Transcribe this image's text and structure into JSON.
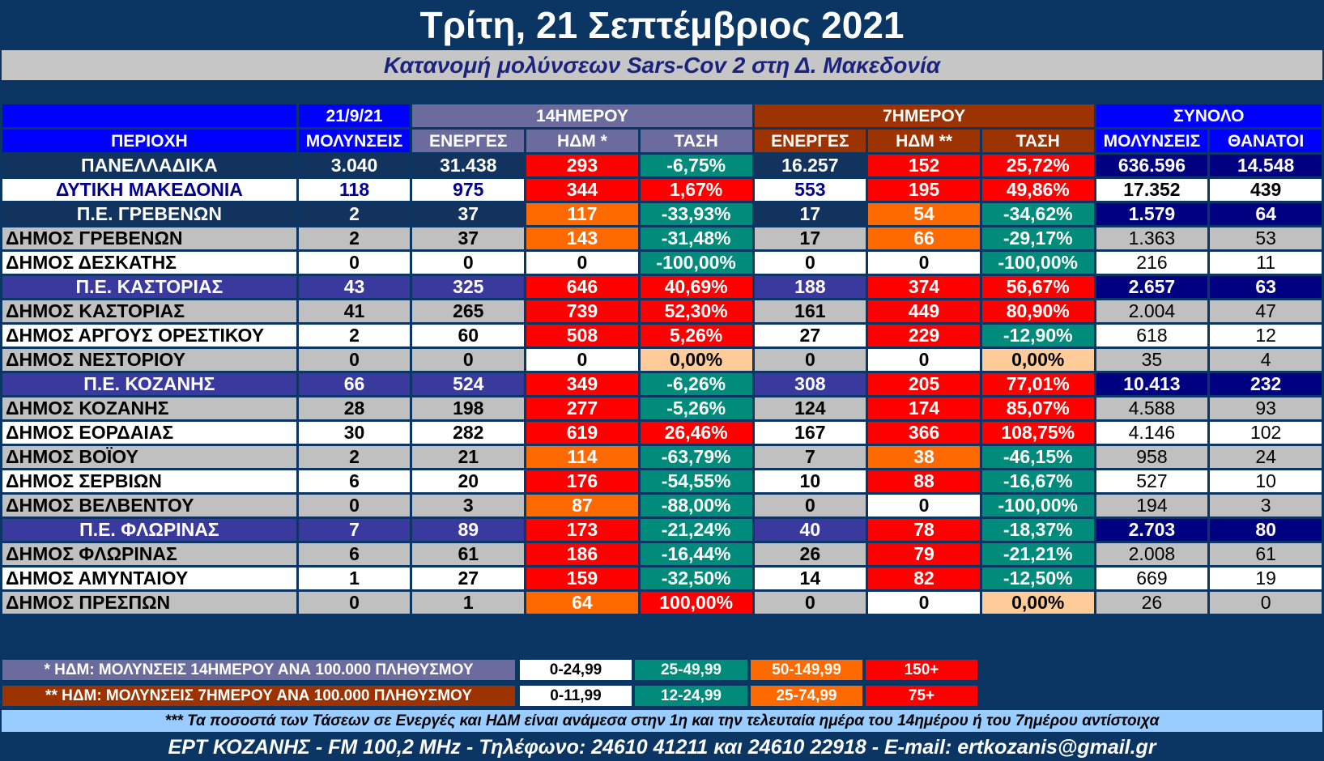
{
  "title": "Τρίτη, 21 Σεπτέμβριος 2021",
  "subtitle": "Κατανομή μολύνσεων Sars-Cov 2 στη Δ. Μακεδονία",
  "header": {
    "date": "21/9/21",
    "group_14": "14ΗΜΕΡΟΥ",
    "group_7": "7ΗΜΕΡΟΥ",
    "group_total": "ΣΥΝΟΛΟ",
    "area": "ΠΕΡΙΟΧΗ",
    "infections": "ΜΟΛΥΝΣΕΙΣ",
    "active14": "ΕΝΕΡΓΕΣ",
    "hdm14": "ΗΔΜ *",
    "trend14": "ΤΑΣΗ",
    "active7": "ΕΝΕΡΓΕΣ",
    "hdm7": "ΗΔΜ **",
    "trend7": "ΤΑΣΗ",
    "total_infections": "ΜΟΛΥΝΣΕΙΣ",
    "deaths": "ΘΑΝΑΤΟΙ"
  },
  "rows": [
    {
      "kind": "national",
      "name": "ΠΑΝΕΛΛΑΔΙΚΑ",
      "inf": "3.040",
      "act14": "31.438",
      "hdm14": "293",
      "hdm14_c": "red",
      "tr14": "-6,75%",
      "tr14_c": "teal",
      "act7": "16.257",
      "hdm7": "152",
      "hdm7_c": "red",
      "tr7": "25,72%",
      "tr7_c": "red",
      "tot": "636.596",
      "deaths": "14.548"
    },
    {
      "kind": "region",
      "name": "ΔΥΤΙΚΗ ΜΑΚΕΔΟΝΙΑ",
      "inf": "118",
      "act14": "975",
      "hdm14": "344",
      "hdm14_c": "red",
      "tr14": "1,67%",
      "tr14_c": "red",
      "act7": "553",
      "hdm7": "195",
      "hdm7_c": "red",
      "tr7": "49,86%",
      "tr7_c": "red",
      "tot": "17.352",
      "deaths": "439"
    },
    {
      "kind": "pe",
      "name": "Π.Ε. ΓΡΕΒΕΝΩΝ",
      "inf": "2",
      "act14": "37",
      "hdm14": "117",
      "hdm14_c": "orange",
      "tr14": "-33,93%",
      "tr14_c": "teal",
      "act7": "17",
      "hdm7": "54",
      "hdm7_c": "orange",
      "tr7": "-34,62%",
      "tr7_c": "teal",
      "tot": "1.579",
      "deaths": "64"
    },
    {
      "kind": "grey",
      "name": "ΔΗΜΟΣ ΓΡΕΒΕΝΩΝ",
      "inf": "2",
      "act14": "37",
      "hdm14": "143",
      "hdm14_c": "orange",
      "tr14": "-31,48%",
      "tr14_c": "teal",
      "act7": "17",
      "hdm7": "66",
      "hdm7_c": "orange",
      "tr7": "-29,17%",
      "tr7_c": "teal",
      "tot": "1.363",
      "deaths": "53"
    },
    {
      "kind": "white",
      "name": "ΔΗΜΟΣ ΔΕΣΚΑΤΗΣ",
      "inf": "0",
      "act14": "0",
      "hdm14": "0",
      "hdm14_c": "white",
      "tr14": "-100,00%",
      "tr14_c": "teal",
      "act7": "0",
      "hdm7": "0",
      "hdm7_c": "white",
      "tr7": "-100,00%",
      "tr7_c": "teal",
      "tot": "216",
      "deaths": "11"
    },
    {
      "kind": "pe",
      "name": "Π.Ε. ΚΑΣΤΟΡΙΑΣ",
      "inf": "43",
      "act14": "325",
      "hdm14": "646",
      "hdm14_c": "red",
      "tr14": "40,69%",
      "tr14_c": "red",
      "act7": "188",
      "hdm7": "374",
      "hdm7_c": "red",
      "tr7": "56,67%",
      "tr7_c": "red",
      "tot": "2.657",
      "deaths": "63"
    },
    {
      "kind": "grey",
      "name": "ΔΗΜΟΣ ΚΑΣΤΟΡΙΑΣ",
      "inf": "41",
      "act14": "265",
      "hdm14": "739",
      "hdm14_c": "red",
      "tr14": "52,30%",
      "tr14_c": "red",
      "act7": "161",
      "hdm7": "449",
      "hdm7_c": "red",
      "tr7": "80,90%",
      "tr7_c": "red",
      "tot": "2.004",
      "deaths": "47"
    },
    {
      "kind": "white",
      "name": "ΔΗΜΟΣ ΑΡΓΟΥΣ ΟΡΕΣΤΙΚΟΥ",
      "inf": "2",
      "act14": "60",
      "hdm14": "508",
      "hdm14_c": "red",
      "tr14": "5,26%",
      "tr14_c": "red",
      "act7": "27",
      "hdm7": "229",
      "hdm7_c": "red",
      "tr7": "-12,90%",
      "tr7_c": "teal",
      "tot": "618",
      "deaths": "12"
    },
    {
      "kind": "grey",
      "name": "ΔΗΜΟΣ ΝΕΣΤΟΡΙΟΥ",
      "inf": "0",
      "act14": "0",
      "hdm14": "0",
      "hdm14_c": "white",
      "tr14": "0,00%",
      "tr14_c": "peach",
      "act7": "0",
      "hdm7": "0",
      "hdm7_c": "white",
      "tr7": "0,00%",
      "tr7_c": "peach",
      "tot": "35",
      "deaths": "4"
    },
    {
      "kind": "pe",
      "name": "Π.Ε. ΚΟΖΑΝΗΣ",
      "inf": "66",
      "act14": "524",
      "hdm14": "349",
      "hdm14_c": "red",
      "tr14": "-6,26%",
      "tr14_c": "teal",
      "act7": "308",
      "hdm7": "205",
      "hdm7_c": "red",
      "tr7": "77,01%",
      "tr7_c": "red",
      "tot": "10.413",
      "deaths": "232"
    },
    {
      "kind": "grey",
      "name": "ΔΗΜΟΣ ΚΟΖΑΝΗΣ",
      "inf": "28",
      "act14": "198",
      "hdm14": "277",
      "hdm14_c": "red",
      "tr14": "-5,26%",
      "tr14_c": "teal",
      "act7": "124",
      "hdm7": "174",
      "hdm7_c": "red",
      "tr7": "85,07%",
      "tr7_c": "red",
      "tot": "4.588",
      "deaths": "93"
    },
    {
      "kind": "white",
      "name": "ΔΗΜΟΣ ΕΟΡΔΑΙΑΣ",
      "inf": "30",
      "act14": "282",
      "hdm14": "619",
      "hdm14_c": "red",
      "tr14": "26,46%",
      "tr14_c": "red",
      "act7": "167",
      "hdm7": "366",
      "hdm7_c": "red",
      "tr7": "108,75%",
      "tr7_c": "red",
      "tot": "4.146",
      "deaths": "102"
    },
    {
      "kind": "grey",
      "name": "ΔΗΜΟΣ ΒΟΪΟΥ",
      "inf": "2",
      "act14": "21",
      "hdm14": "114",
      "hdm14_c": "orange",
      "tr14": "-63,79%",
      "tr14_c": "teal",
      "act7": "7",
      "hdm7": "38",
      "hdm7_c": "orange",
      "tr7": "-46,15%",
      "tr7_c": "teal",
      "tot": "958",
      "deaths": "24"
    },
    {
      "kind": "white",
      "name": "ΔΗΜΟΣ ΣΕΡΒΙΩΝ",
      "inf": "6",
      "act14": "20",
      "hdm14": "176",
      "hdm14_c": "red",
      "tr14": "-54,55%",
      "tr14_c": "teal",
      "act7": "10",
      "hdm7": "88",
      "hdm7_c": "red",
      "tr7": "-16,67%",
      "tr7_c": "teal",
      "tot": "527",
      "deaths": "10"
    },
    {
      "kind": "grey",
      "name": "ΔΗΜΟΣ ΒΕΛΒΕΝΤΟΥ",
      "inf": "0",
      "act14": "3",
      "hdm14": "87",
      "hdm14_c": "orange",
      "tr14": "-88,00%",
      "tr14_c": "teal",
      "act7": "0",
      "hdm7": "0",
      "hdm7_c": "white",
      "tr7": "-100,00%",
      "tr7_c": "teal",
      "tot": "194",
      "deaths": "3"
    },
    {
      "kind": "pe",
      "name": "Π.Ε. ΦΛΩΡΙΝΑΣ",
      "inf": "7",
      "act14": "89",
      "hdm14": "173",
      "hdm14_c": "red",
      "tr14": "-21,24%",
      "tr14_c": "teal",
      "act7": "40",
      "hdm7": "78",
      "hdm7_c": "red",
      "tr7": "-18,37%",
      "tr7_c": "teal",
      "tot": "2.703",
      "deaths": "80"
    },
    {
      "kind": "grey",
      "name": "ΔΗΜΟΣ ΦΛΩΡΙΝΑΣ",
      "inf": "6",
      "act14": "61",
      "hdm14": "186",
      "hdm14_c": "red",
      "tr14": "-16,44%",
      "tr14_c": "teal",
      "act7": "26",
      "hdm7": "79",
      "hdm7_c": "red",
      "tr7": "-21,21%",
      "tr7_c": "teal",
      "tot": "2.008",
      "deaths": "61"
    },
    {
      "kind": "white",
      "name": "ΔΗΜΟΣ ΑΜΥΝΤΑΙΟΥ",
      "inf": "1",
      "act14": "27",
      "hdm14": "159",
      "hdm14_c": "red",
      "tr14": "-32,50%",
      "tr14_c": "teal",
      "act7": "14",
      "hdm7": "82",
      "hdm7_c": "red",
      "tr7": "-12,50%",
      "tr7_c": "teal",
      "tot": "669",
      "deaths": "19"
    },
    {
      "kind": "grey",
      "name": "ΔΗΜΟΣ ΠΡΕΣΠΩΝ",
      "inf": "0",
      "act14": "1",
      "hdm14": "64",
      "hdm14_c": "orange",
      "tr14": "100,00%",
      "tr14_c": "red",
      "act7": "0",
      "hdm7": "0",
      "hdm7_c": "white",
      "tr7": "0,00%",
      "tr7_c": "peach",
      "tot": "26",
      "deaths": "0"
    }
  ],
  "legend": {
    "label14": "* ΗΔΜ: ΜΟΛΥΝΣΕΙΣ 14ΗΜΕΡΟΥ ΑΝΑ 100.000 ΠΛΗΘΥΣΜΟΥ",
    "ranges14": [
      "0-24,99",
      "25-49,99",
      "50-149,99",
      "150+"
    ],
    "label7": "** ΗΔΜ: ΜΟΛΥΝΣΕΙΣ 7ΗΜΕΡΟΥ ΑΝΑ 100.000 ΠΛΗΘΥΣΜΟΥ",
    "ranges7": [
      "0-11,99",
      "12-24,99",
      "25-74,99",
      "75+"
    ],
    "colors": [
      "#ffffff",
      "#008b7a",
      "#ff6a00",
      "#ff0000"
    ]
  },
  "note": "*** Τα ποσοστά των Τάσεων σε Ενεργές και ΗΔΜ είναι ανάμεσα στην 1η και την τελευταία ημέρα του 14ημέρου ή του 7ημέρου αντίστοιχα",
  "footer": "ΕΡΤ ΚΟΖΑΝΗΣ - FM 100,2 MHz - Τηλέφωνο:  24610 41211 και 24610 22918 - E-mail: ertkozanis@gmail.gr"
}
